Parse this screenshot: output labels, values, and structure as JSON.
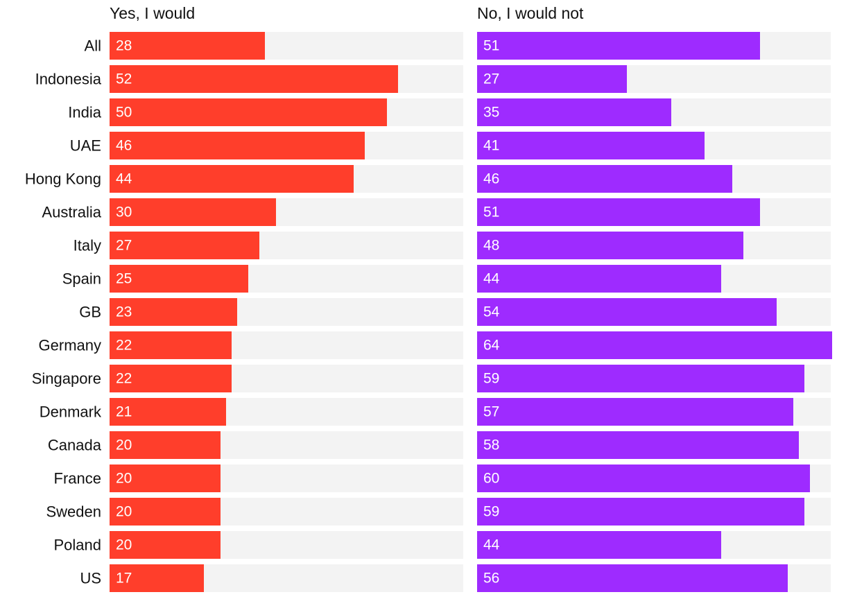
{
  "chart_data": {
    "type": "bar",
    "orientation": "horizontal",
    "categories": [
      "All",
      "Indonesia",
      "India",
      "UAE",
      "Hong Kong",
      "Australia",
      "Italy",
      "Spain",
      "GB",
      "Germany",
      "Singapore",
      "Denmark",
      "Canada",
      "France",
      "Sweden",
      "Poland",
      "US"
    ],
    "series": [
      {
        "name": "Yes, I would",
        "color": "#ff3e2b",
        "values": [
          28,
          52,
          50,
          46,
          44,
          30,
          27,
          25,
          23,
          22,
          22,
          21,
          20,
          20,
          20,
          20,
          17
        ]
      },
      {
        "name": "No, I would not",
        "color": "#9e2bff",
        "values": [
          51,
          27,
          35,
          41,
          46,
          51,
          48,
          44,
          54,
          64,
          59,
          57,
          58,
          60,
          59,
          44,
          56
        ]
      }
    ],
    "track_color": "#f3f3f3",
    "xlim": [
      0,
      64
    ],
    "grid": false,
    "data_labels": true
  }
}
